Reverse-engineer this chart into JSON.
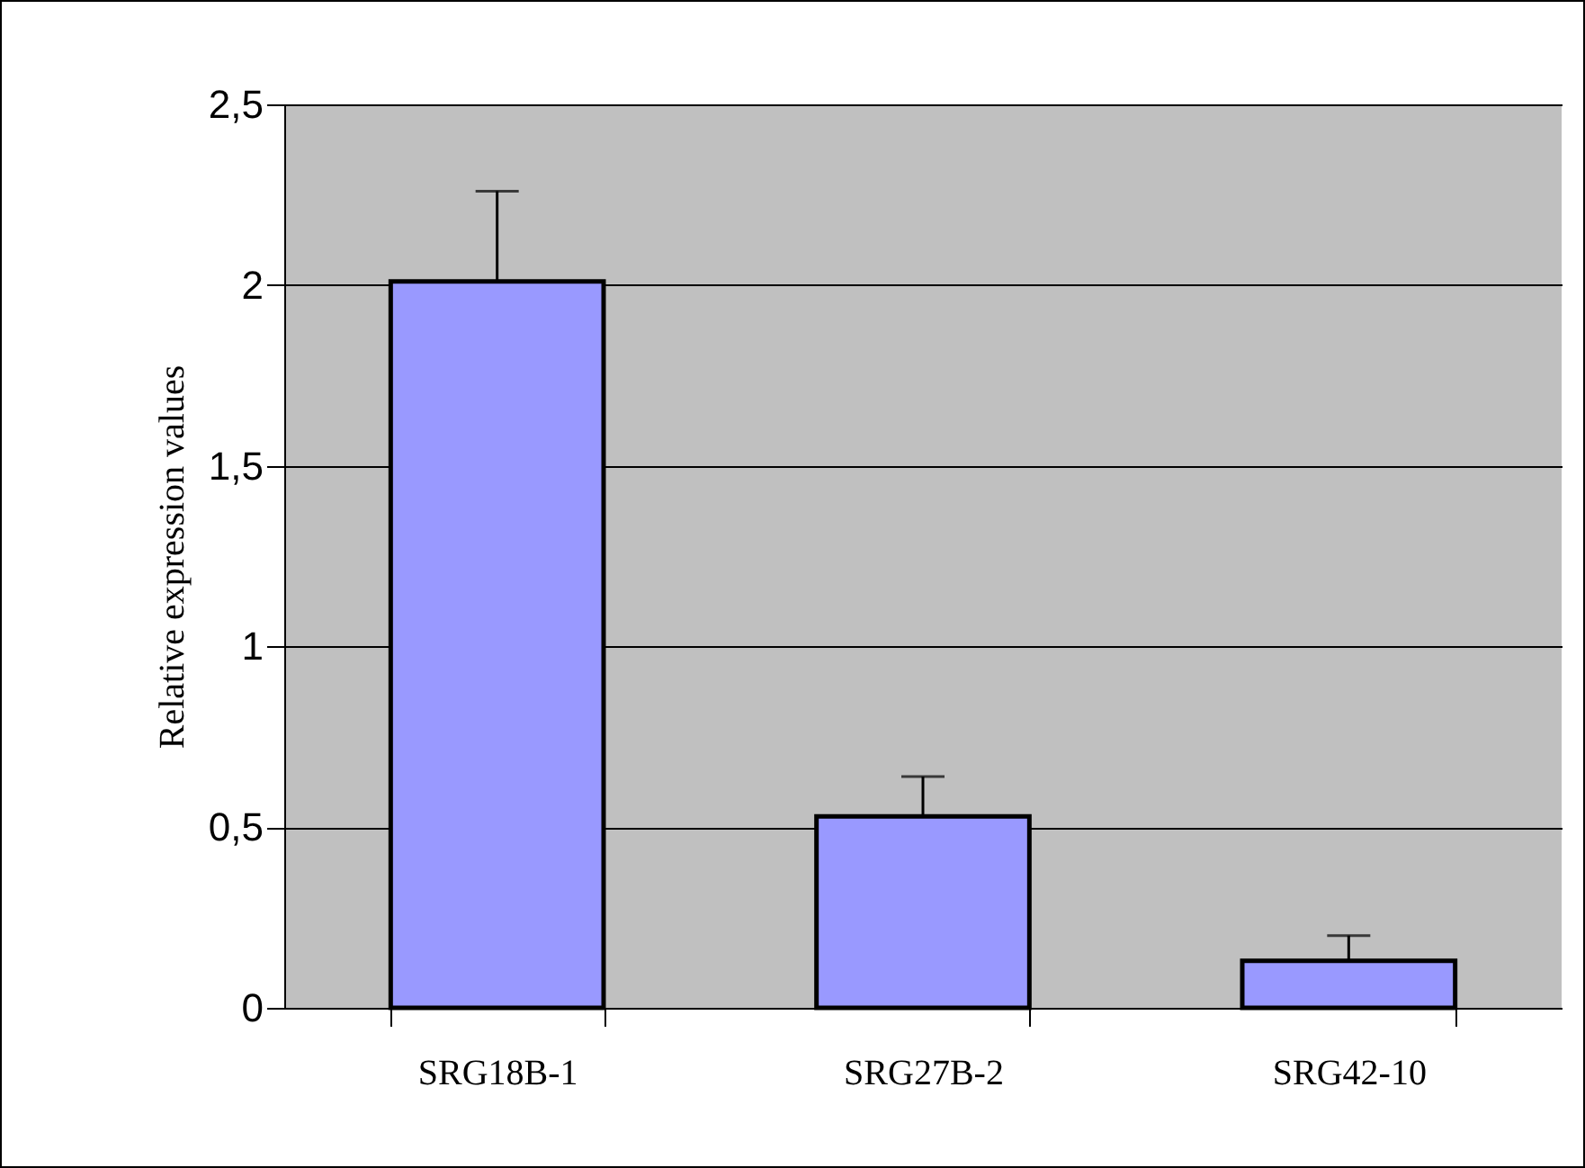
{
  "chart_data": {
    "type": "bar",
    "ylabel": "Relative expression values",
    "categories": [
      "SRG18B-1",
      "SRG27B-2",
      "SRG42-10"
    ],
    "values": [
      2.01,
      0.53,
      0.13
    ],
    "errors": [
      [
        2.01,
        2.26
      ],
      [
        0.53,
        0.64
      ],
      [
        0.13,
        0.2
      ]
    ],
    "color": "#9999ff",
    "ylim": [
      0,
      2.5
    ],
    "yticks": [
      {
        "value": 0,
        "label": "0"
      },
      {
        "value": 0.5,
        "label": "0,5"
      },
      {
        "value": 1,
        "label": "1"
      },
      {
        "value": 1.5,
        "label": "1,5"
      },
      {
        "value": 2,
        "label": "2"
      },
      {
        "value": 2.5,
        "label": "2,5"
      }
    ],
    "grid": "y"
  }
}
